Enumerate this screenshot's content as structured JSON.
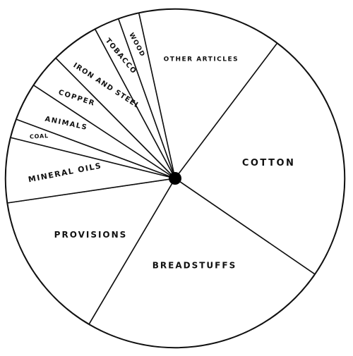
{
  "chart_data": {
    "type": "pie",
    "title": "",
    "start_angle_deg": -53,
    "direction": "clockwise",
    "colors": {
      "fill": "#ffffff",
      "stroke": "#111111",
      "center_dot": "#000000"
    },
    "slices": [
      {
        "label": "COTTON",
        "value": 24.3
      },
      {
        "label": "BREADSTUFFS",
        "value": 23.9
      },
      {
        "label": "PROVISIONS",
        "value": 14.2
      },
      {
        "label": "MINERAL OILS",
        "value": 6.2
      },
      {
        "label": "COAL",
        "value": 1.8
      },
      {
        "label": "ANIMALS",
        "value": 3.6
      },
      {
        "label": "COPPER",
        "value": 3.3
      },
      {
        "label": "IRON AND STEEL",
        "value": 4.6
      },
      {
        "label": "TOBACCO",
        "value": 2.4
      },
      {
        "label": "WOOD",
        "value": 2.0
      },
      {
        "label": "OTHER ARTICLES",
        "value": 13.7
      }
    ]
  }
}
